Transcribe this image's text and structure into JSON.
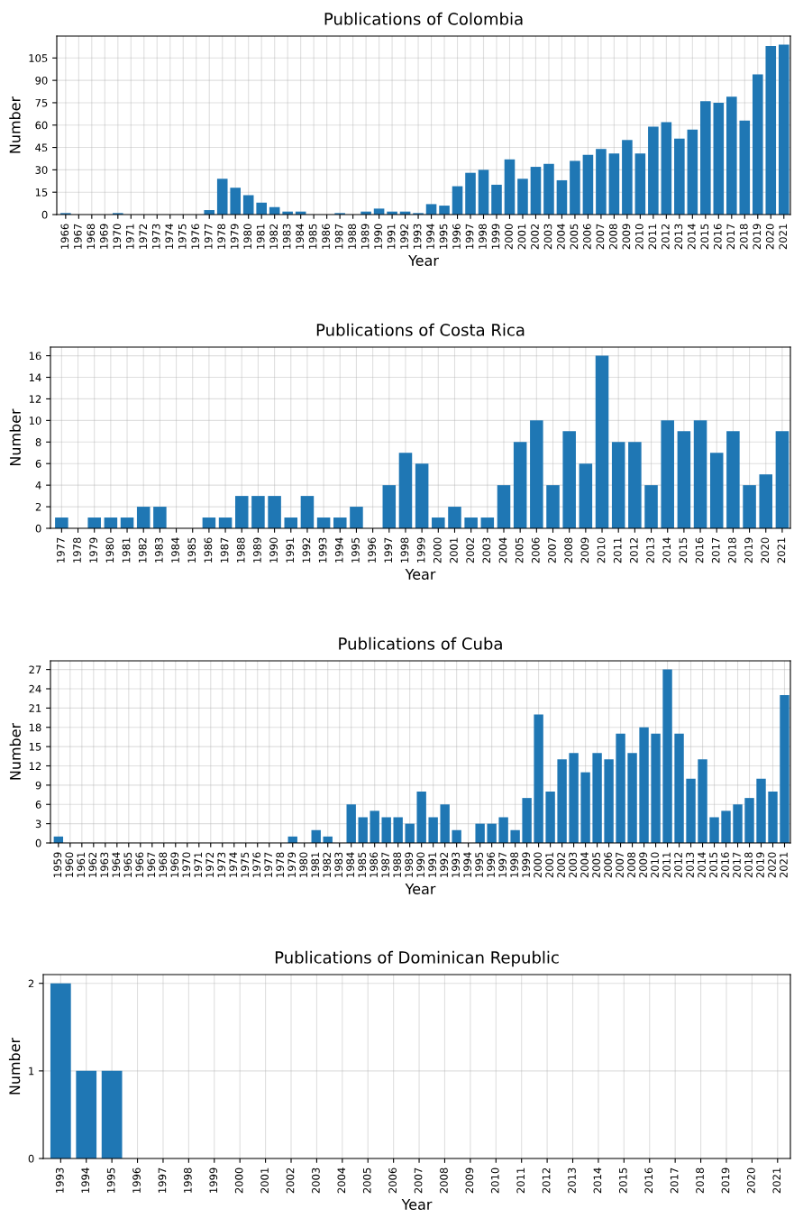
{
  "chart_data": [
    {
      "type": "bar",
      "title": "Publications of Colombia",
      "xlabel": "Year",
      "ylabel": "Number",
      "color": "#1f77b4",
      "grid": true,
      "ylim": [
        0,
        119.7
      ],
      "yticks": [
        0,
        15,
        30,
        45,
        60,
        75,
        90,
        105
      ],
      "categories": [
        "1966",
        "1967",
        "1968",
        "1969",
        "1970",
        "1971",
        "1972",
        "1973",
        "1974",
        "1975",
        "1976",
        "1977",
        "1978",
        "1979",
        "1980",
        "1981",
        "1982",
        "1983",
        "1984",
        "1985",
        "1986",
        "1987",
        "1988",
        "1989",
        "1990",
        "1991",
        "1992",
        "1993",
        "1994",
        "1995",
        "1996",
        "1997",
        "1998",
        "1999",
        "2000",
        "2001",
        "2002",
        "2003",
        "2004",
        "2005",
        "2006",
        "2007",
        "2008",
        "2009",
        "2010",
        "2011",
        "2012",
        "2013",
        "2014",
        "2015",
        "2016",
        "2017",
        "2018",
        "2019",
        "2020",
        "2021"
      ],
      "values": [
        1,
        0,
        0,
        0,
        1,
        0,
        0,
        0,
        0,
        0,
        0,
        3,
        24,
        18,
        13,
        8,
        5,
        2,
        2,
        0,
        0,
        1,
        0,
        2,
        4,
        2,
        2,
        1,
        7,
        6,
        19,
        28,
        30,
        20,
        37,
        24,
        32,
        34,
        23,
        36,
        40,
        44,
        41,
        50,
        41,
        59,
        62,
        51,
        57,
        76,
        75,
        79,
        63,
        94,
        113,
        114
      ]
    },
    {
      "type": "bar",
      "title": "Publications of Costa Rica",
      "xlabel": "Year",
      "ylabel": "Number",
      "color": "#1f77b4",
      "grid": true,
      "ylim": [
        0,
        16.8
      ],
      "yticks": [
        0,
        2,
        4,
        6,
        8,
        10,
        12,
        14,
        16
      ],
      "categories": [
        "1977",
        "1978",
        "1979",
        "1980",
        "1981",
        "1982",
        "1983",
        "1984",
        "1985",
        "1986",
        "1987",
        "1988",
        "1989",
        "1990",
        "1991",
        "1992",
        "1993",
        "1994",
        "1995",
        "1996",
        "1997",
        "1998",
        "1999",
        "2000",
        "2001",
        "2002",
        "2003",
        "2004",
        "2005",
        "2006",
        "2007",
        "2008",
        "2009",
        "2010",
        "2011",
        "2012",
        "2013",
        "2014",
        "2015",
        "2016",
        "2017",
        "2018",
        "2019",
        "2020",
        "2021"
      ],
      "values": [
        1,
        0,
        1,
        1,
        1,
        2,
        2,
        0,
        0,
        1,
        1,
        3,
        3,
        3,
        1,
        3,
        1,
        1,
        2,
        0,
        4,
        7,
        6,
        1,
        2,
        1,
        1,
        4,
        8,
        10,
        4,
        9,
        6,
        16,
        8,
        8,
        4,
        10,
        9,
        10,
        7,
        9,
        4,
        5,
        9
      ]
    },
    {
      "type": "bar",
      "title": "Publications of Cuba",
      "xlabel": "Year",
      "ylabel": "Number",
      "color": "#1f77b4",
      "grid": true,
      "ylim": [
        0,
        28.35
      ],
      "yticks": [
        0,
        3,
        6,
        9,
        12,
        15,
        18,
        21,
        24,
        27
      ],
      "categories": [
        "1959",
        "1960",
        "1961",
        "1962",
        "1963",
        "1964",
        "1965",
        "1966",
        "1967",
        "1968",
        "1969",
        "1970",
        "1971",
        "1972",
        "1973",
        "1974",
        "1975",
        "1976",
        "1977",
        "1978",
        "1979",
        "1980",
        "1981",
        "1982",
        "1983",
        "1984",
        "1985",
        "1986",
        "1987",
        "1988",
        "1989",
        "1990",
        "1991",
        "1992",
        "1993",
        "1994",
        "1995",
        "1996",
        "1997",
        "1998",
        "1999",
        "2000",
        "2001",
        "2002",
        "2003",
        "2004",
        "2005",
        "2006",
        "2007",
        "2008",
        "2009",
        "2010",
        "2011",
        "2012",
        "2013",
        "2014",
        "2015",
        "2016",
        "2017",
        "2018",
        "2019",
        "2020",
        "2021"
      ],
      "values": [
        1,
        0,
        0,
        0,
        0,
        0,
        0,
        0,
        0,
        0,
        0,
        0,
        0,
        0,
        0,
        0,
        0,
        0,
        0,
        0,
        1,
        0,
        2,
        1,
        0,
        6,
        4,
        5,
        4,
        4,
        3,
        8,
        4,
        6,
        2,
        0,
        3,
        3,
        4,
        2,
        7,
        20,
        8,
        13,
        14,
        11,
        14,
        13,
        17,
        14,
        18,
        17,
        27,
        17,
        10,
        13,
        4,
        5,
        6,
        7,
        10,
        8,
        23
      ]
    },
    {
      "type": "bar",
      "title": "Publications of Dominican Republic",
      "xlabel": "Year",
      "ylabel": "Number",
      "color": "#1f77b4",
      "grid": true,
      "ylim": [
        0,
        2.1
      ],
      "yticks": [
        0,
        1,
        2
      ],
      "categories": [
        "1993",
        "1994",
        "1995",
        "1996",
        "1997",
        "1998",
        "1999",
        "2000",
        "2001",
        "2002",
        "2003",
        "2004",
        "2005",
        "2006",
        "2007",
        "2008",
        "2009",
        "2010",
        "2011",
        "2012",
        "2013",
        "2014",
        "2015",
        "2016",
        "2017",
        "2018",
        "2019",
        "2020",
        "2021"
      ],
      "values": [
        2,
        1,
        1,
        0,
        0,
        0,
        0,
        0,
        0,
        0,
        0,
        0,
        0,
        0,
        0,
        0,
        0,
        0,
        0,
        0,
        0,
        0,
        0,
        0,
        0,
        0,
        0,
        0,
        0
      ]
    }
  ]
}
